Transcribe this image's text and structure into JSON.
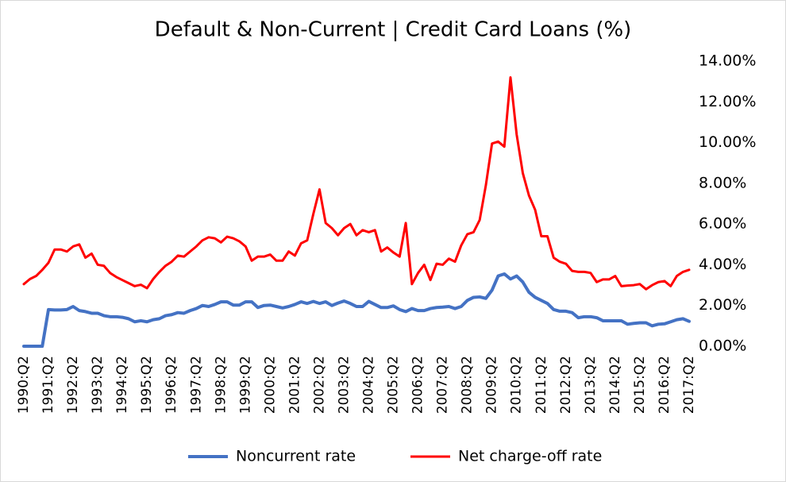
{
  "chart_data": {
    "type": "line",
    "title": "Default & Non-Current | Credit Card Loans (%)",
    "categories": [
      "1990:Q2",
      null,
      null,
      null,
      "1991:Q2",
      null,
      null,
      null,
      "1992:Q2",
      null,
      null,
      null,
      "1993:Q2",
      null,
      null,
      null,
      "1994:Q2",
      null,
      null,
      null,
      "1995:Q2",
      null,
      null,
      null,
      "1996:Q2",
      null,
      null,
      null,
      "1997:Q2",
      null,
      null,
      null,
      "1998:Q2",
      null,
      null,
      null,
      "1999:Q2",
      null,
      null,
      null,
      "2000:Q2",
      null,
      null,
      null,
      "2001:Q2",
      null,
      null,
      null,
      "2002:Q2",
      null,
      null,
      null,
      "2003:Q2",
      null,
      null,
      null,
      "2004:Q2",
      null,
      null,
      null,
      "2005:Q2",
      null,
      null,
      null,
      "2006:Q2",
      null,
      null,
      null,
      "2007:Q2",
      null,
      null,
      null,
      "2008:Q2",
      null,
      null,
      null,
      "2009:Q2",
      null,
      null,
      null,
      "2010:Q2",
      null,
      null,
      null,
      "2011:Q2",
      null,
      null,
      null,
      "2012:Q2",
      null,
      null,
      null,
      "2013:Q2",
      null,
      null,
      null,
      "2014:Q2",
      null,
      null,
      null,
      "2015:Q2",
      null,
      null,
      null,
      "2016:Q2",
      null,
      null,
      null,
      "2017:Q2"
    ],
    "series": [
      {
        "name": "Noncurrent rate",
        "color": "#4472c4",
        "values": [
          0,
          0,
          0,
          0,
          1.8,
          1.78,
          1.78,
          1.8,
          1.95,
          1.75,
          1.7,
          1.62,
          1.62,
          1.5,
          1.45,
          1.45,
          1.42,
          1.35,
          1.2,
          1.25,
          1.2,
          1.3,
          1.35,
          1.5,
          1.55,
          1.65,
          1.62,
          1.75,
          1.85,
          2.0,
          1.95,
          2.05,
          2.18,
          2.18,
          2.02,
          2.02,
          2.18,
          2.18,
          1.9,
          2.0,
          2.02,
          1.95,
          1.88,
          1.95,
          2.05,
          2.18,
          2.1,
          2.2,
          2.1,
          2.18,
          2.0,
          2.12,
          2.22,
          2.1,
          1.95,
          1.95,
          2.2,
          2.05,
          1.9,
          1.9,
          1.98,
          1.8,
          1.7,
          1.85,
          1.75,
          1.75,
          1.85,
          1.9,
          1.92,
          1.95,
          1.85,
          1.95,
          2.25,
          2.4,
          2.42,
          2.35,
          2.75,
          3.45,
          3.55,
          3.3,
          3.45,
          3.15,
          2.65,
          2.4,
          2.25,
          2.1,
          1.8,
          1.72,
          1.72,
          1.65,
          1.4,
          1.45,
          1.45,
          1.4,
          1.25,
          1.25,
          1.25,
          1.25,
          1.08,
          1.12,
          1.15,
          1.15,
          1.0,
          1.08,
          1.1,
          1.2,
          1.3,
          1.35,
          1.22
        ]
      },
      {
        "name": "Net charge-off rate",
        "color": "#ff0000",
        "values": [
          3.05,
          3.3,
          3.45,
          3.75,
          4.1,
          4.75,
          4.75,
          4.65,
          4.9,
          5.0,
          4.35,
          4.55,
          4.0,
          3.95,
          3.6,
          3.4,
          3.25,
          3.1,
          2.95,
          3.02,
          2.85,
          3.3,
          3.65,
          3.95,
          4.15,
          4.45,
          4.4,
          4.65,
          4.9,
          5.2,
          5.35,
          5.3,
          5.1,
          5.38,
          5.3,
          5.15,
          4.9,
          4.2,
          4.4,
          4.4,
          4.5,
          4.2,
          4.2,
          4.65,
          4.45,
          5.05,
          5.2,
          6.5,
          7.7,
          6.05,
          5.8,
          5.45,
          5.8,
          6.0,
          5.45,
          5.7,
          5.6,
          5.7,
          4.65,
          4.85,
          4.6,
          4.4,
          6.05,
          3.05,
          3.6,
          4.0,
          3.25,
          4.05,
          4.0,
          4.3,
          4.15,
          4.95,
          5.5,
          5.6,
          6.2,
          7.9,
          9.95,
          10.05,
          9.8,
          13.2,
          10.4,
          8.5,
          7.4,
          6.7,
          5.4,
          5.4,
          4.35,
          4.15,
          4.05,
          3.7,
          3.65,
          3.65,
          3.6,
          3.15,
          3.28,
          3.28,
          3.45,
          2.95,
          2.98,
          3.0,
          3.05,
          2.8,
          3.0,
          3.15,
          3.2,
          2.95,
          3.45,
          3.65,
          3.75
        ]
      }
    ],
    "ylim": [
      0,
      14
    ],
    "yticks": [
      {
        "value": 0,
        "label": "0.00%"
      },
      {
        "value": 2,
        "label": "2.00%"
      },
      {
        "value": 4,
        "label": "4.00%"
      },
      {
        "value": 6,
        "label": "6.00%"
      },
      {
        "value": 8,
        "label": "8.00%"
      },
      {
        "value": 10,
        "label": "10.00%"
      },
      {
        "value": 12,
        "label": "12.00%"
      },
      {
        "value": 14,
        "label": "14.00%"
      }
    ],
    "y_axis_side": "right",
    "grid": false,
    "legend": "bottom"
  }
}
